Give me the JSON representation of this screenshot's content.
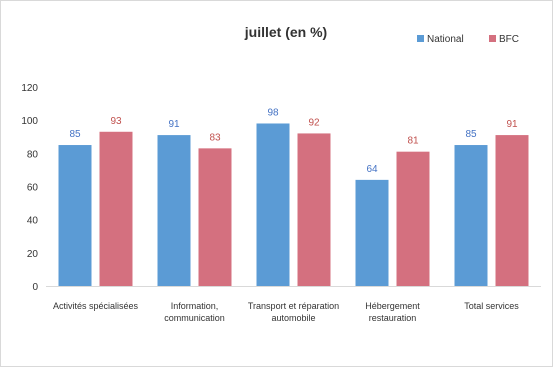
{
  "chart_data": {
    "type": "bar",
    "title": "juillet (en %)",
    "categories": [
      [
        "Activités spécialisées"
      ],
      [
        "Information,",
        "communication"
      ],
      [
        "Transport et réparation",
        "automobile"
      ],
      [
        "Hébergement",
        "restauration"
      ],
      [
        "Total services"
      ]
    ],
    "series": [
      {
        "name": "National",
        "color": "#5b9bd5",
        "label_color": "#4472c4",
        "values": [
          85,
          91,
          98,
          64,
          85
        ]
      },
      {
        "name": "BFC",
        "color": "#d4707f",
        "label_color": "#c0504d",
        "values": [
          93,
          83,
          92,
          81,
          91
        ]
      }
    ],
    "yticks": [
      "0",
      "20",
      "40",
      "60",
      "80",
      "100",
      "120"
    ],
    "ylim": [
      0,
      120
    ],
    "grid": false,
    "legend": "top-right"
  }
}
